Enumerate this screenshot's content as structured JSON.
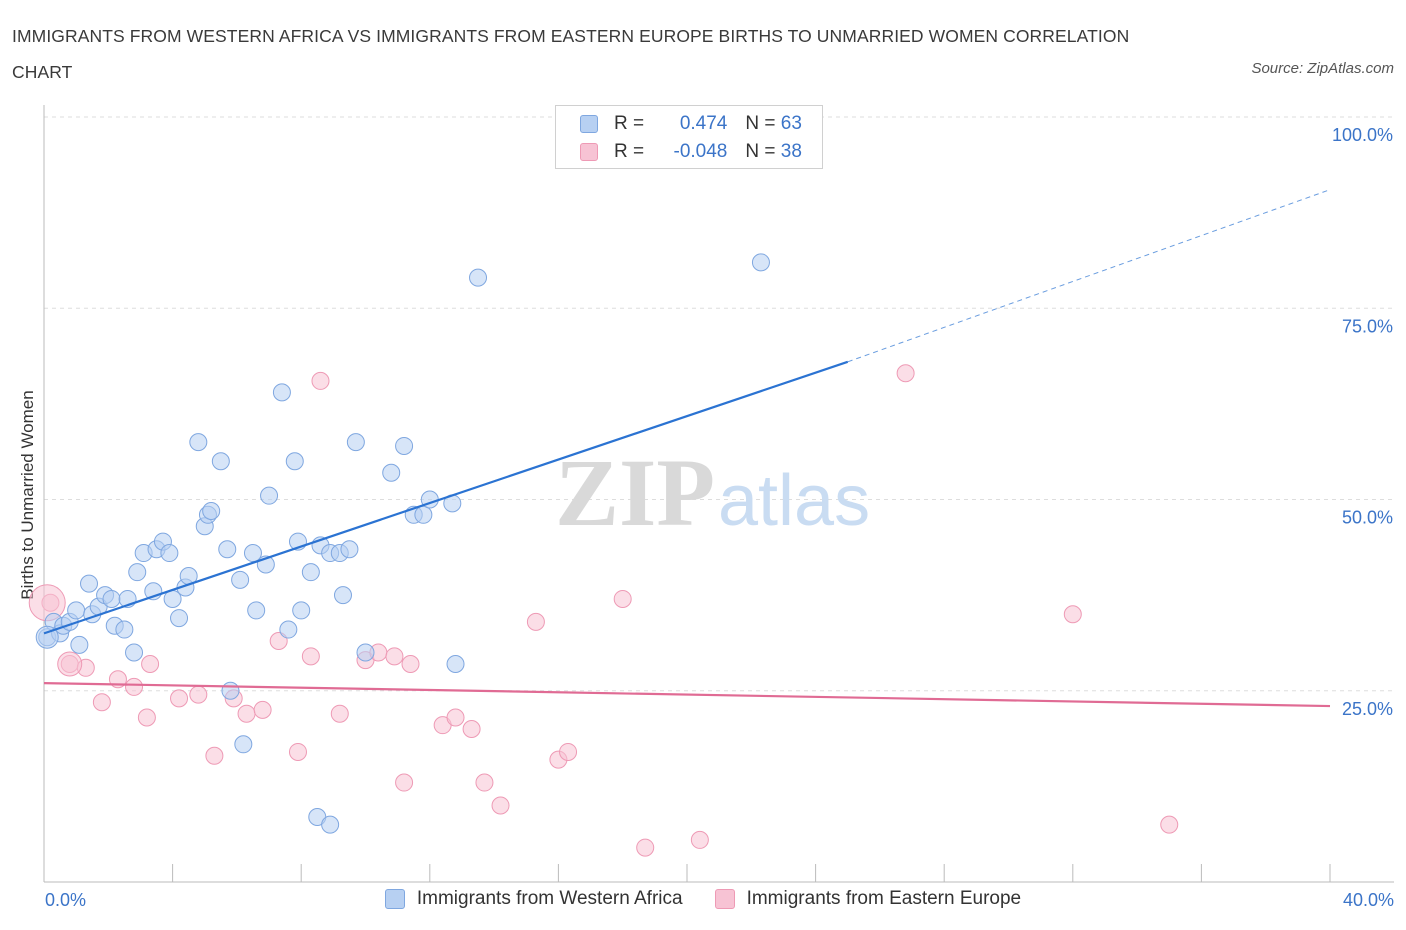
{
  "title": "IMMIGRANTS FROM WESTERN AFRICA VS IMMIGRANTS FROM EASTERN EUROPE BIRTHS TO UNMARRIED WOMEN CORRELATION CHART",
  "source": "Source: ZipAtlas.com",
  "watermark": {
    "zip": "ZIP",
    "atlas": "atlas"
  },
  "colors": {
    "blue_fill": "#b7d0f2",
    "blue_stroke": "#7fa7e0",
    "blue_line": "#2b73d2",
    "pink_fill": "#f7c3d4",
    "pink_stroke": "#ee9ab5",
    "pink_line": "#e06b94",
    "axis_text": "#3b74c8",
    "grid": "#dddddd"
  },
  "stats": [
    {
      "r_label": "R = ",
      "r_value": "0.474",
      "n_label": "N = ",
      "n_value": "63"
    },
    {
      "r_label": "R = ",
      "r_value": "-0.048",
      "n_label": "N = ",
      "n_value": "38"
    }
  ],
  "chart_data": {
    "type": "scatter",
    "title": "IMMIGRANTS FROM WESTERN AFRICA VS IMMIGRANTS FROM EASTERN EUROPE BIRTHS TO UNMARRIED WOMEN CORRELATION CHART",
    "xlabel": "",
    "ylabel": "Births to Unmarried Women",
    "xlim": [
      0,
      40
    ],
    "ylim": [
      0,
      100
    ],
    "x_tick_labels": [
      "0.0%",
      "40.0%"
    ],
    "y_ticks": [
      25,
      50,
      75,
      100
    ],
    "y_tick_labels": [
      "25.0%",
      "50.0%",
      "75.0%",
      "100.0%"
    ],
    "grid": true,
    "legend_position": "bottom",
    "series": [
      {
        "name": "Immigrants from Western Africa",
        "color": "#7fa7e0",
        "trend": {
          "x": [
            0,
            25
          ],
          "y": [
            32.5,
            68.0
          ],
          "dashed_to": [
            40,
            90.5
          ]
        },
        "points": [
          [
            0.1,
            32.0
          ],
          [
            0.3,
            34.0
          ],
          [
            0.5,
            32.5
          ],
          [
            0.6,
            33.5
          ],
          [
            0.8,
            34.0
          ],
          [
            1.0,
            35.5
          ],
          [
            1.1,
            31.0
          ],
          [
            1.4,
            39.0
          ],
          [
            1.5,
            35.0
          ],
          [
            1.7,
            36.0
          ],
          [
            1.9,
            37.5
          ],
          [
            2.1,
            37.0
          ],
          [
            2.2,
            33.5
          ],
          [
            2.5,
            33.0
          ],
          [
            2.6,
            37.0
          ],
          [
            2.8,
            30.0
          ],
          [
            2.9,
            40.5
          ],
          [
            3.1,
            43.0
          ],
          [
            3.4,
            38.0
          ],
          [
            3.5,
            43.5
          ],
          [
            3.7,
            44.5
          ],
          [
            3.9,
            43.0
          ],
          [
            4.0,
            37.0
          ],
          [
            4.2,
            34.5
          ],
          [
            4.4,
            38.5
          ],
          [
            4.5,
            40.0
          ],
          [
            4.8,
            57.5
          ],
          [
            5.0,
            46.5
          ],
          [
            5.1,
            48.0
          ],
          [
            5.2,
            48.5
          ],
          [
            5.5,
            55.0
          ],
          [
            5.7,
            43.5
          ],
          [
            5.8,
            25.0
          ],
          [
            6.1,
            39.5
          ],
          [
            6.2,
            18.0
          ],
          [
            6.5,
            43.0
          ],
          [
            6.6,
            35.5
          ],
          [
            6.9,
            41.5
          ],
          [
            7.0,
            50.5
          ],
          [
            7.4,
            64.0
          ],
          [
            7.6,
            33.0
          ],
          [
            7.8,
            55.0
          ],
          [
            7.9,
            44.5
          ],
          [
            8.0,
            35.5
          ],
          [
            8.3,
            40.5
          ],
          [
            8.5,
            8.5
          ],
          [
            8.6,
            44.0
          ],
          [
            8.9,
            7.5
          ],
          [
            8.9,
            43.0
          ],
          [
            9.2,
            43.0
          ],
          [
            9.3,
            37.5
          ],
          [
            9.5,
            43.5
          ],
          [
            9.7,
            57.5
          ],
          [
            10.0,
            30.0
          ],
          [
            10.8,
            53.5
          ],
          [
            11.2,
            57.0
          ],
          [
            11.5,
            48.0
          ],
          [
            11.8,
            48.0
          ],
          [
            12.0,
            50.0
          ],
          [
            12.7,
            49.5
          ],
          [
            12.8,
            28.5
          ],
          [
            13.5,
            79.0
          ],
          [
            22.3,
            81.0
          ]
        ]
      },
      {
        "name": "Immigrants from Eastern Europe",
        "color": "#ee9ab5",
        "trend": {
          "x": [
            0,
            40
          ],
          "y": [
            26.0,
            23.0
          ]
        },
        "points": [
          [
            0.2,
            36.5
          ],
          [
            0.8,
            28.5
          ],
          [
            1.3,
            28.0
          ],
          [
            1.8,
            23.5
          ],
          [
            2.3,
            26.5
          ],
          [
            2.8,
            25.5
          ],
          [
            3.2,
            21.5
          ],
          [
            3.3,
            28.5
          ],
          [
            4.2,
            24.0
          ],
          [
            4.8,
            24.5
          ],
          [
            5.3,
            16.5
          ],
          [
            5.9,
            24.0
          ],
          [
            6.3,
            22.0
          ],
          [
            6.8,
            22.5
          ],
          [
            7.3,
            31.5
          ],
          [
            7.9,
            17.0
          ],
          [
            8.3,
            29.5
          ],
          [
            8.6,
            65.5
          ],
          [
            9.2,
            22.0
          ],
          [
            10.0,
            29.0
          ],
          [
            10.4,
            30.0
          ],
          [
            10.9,
            29.5
          ],
          [
            11.2,
            13.0
          ],
          [
            11.4,
            28.5
          ],
          [
            12.4,
            20.5
          ],
          [
            12.8,
            21.5
          ],
          [
            13.3,
            20.0
          ],
          [
            13.7,
            13.0
          ],
          [
            14.2,
            10.0
          ],
          [
            15.3,
            34.0
          ],
          [
            16.0,
            16.0
          ],
          [
            16.3,
            17.0
          ],
          [
            18.0,
            37.0
          ],
          [
            18.7,
            4.5
          ],
          [
            20.4,
            5.5
          ],
          [
            26.8,
            66.5
          ],
          [
            32.0,
            35.0
          ],
          [
            35.0,
            7.5
          ]
        ]
      }
    ]
  },
  "legend": [
    {
      "label": "Immigrants from Western Africa"
    },
    {
      "label": "Immigrants from Eastern Europe"
    }
  ]
}
